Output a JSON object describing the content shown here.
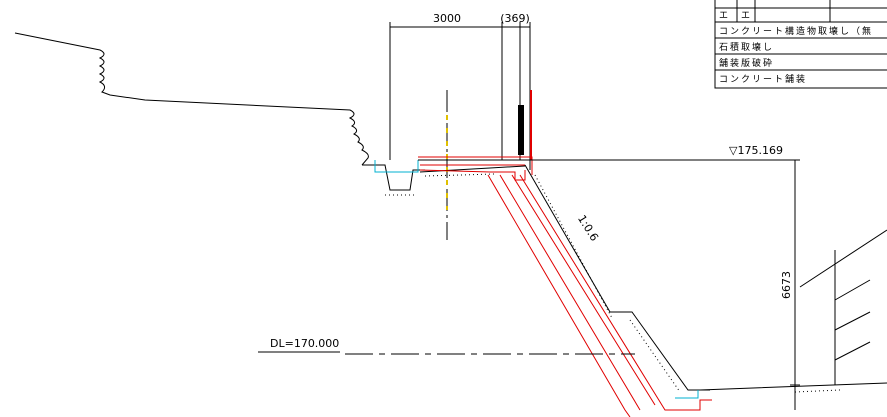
{
  "dimensions": {
    "width": "3000",
    "offset": "(369)",
    "height": "6673"
  },
  "slope": "1:0.6",
  "elevation": "▽175.169",
  "datum": "DL=170.000",
  "table": {
    "rows": [
      [
        "エ",
        "エ"
      ],
      [
        "コンクリート構造物取壊し（無"
      ],
      [
        "石積取壊し"
      ],
      [
        "舗装版破砕"
      ],
      [
        "コンクリート舗装"
      ]
    ]
  }
}
